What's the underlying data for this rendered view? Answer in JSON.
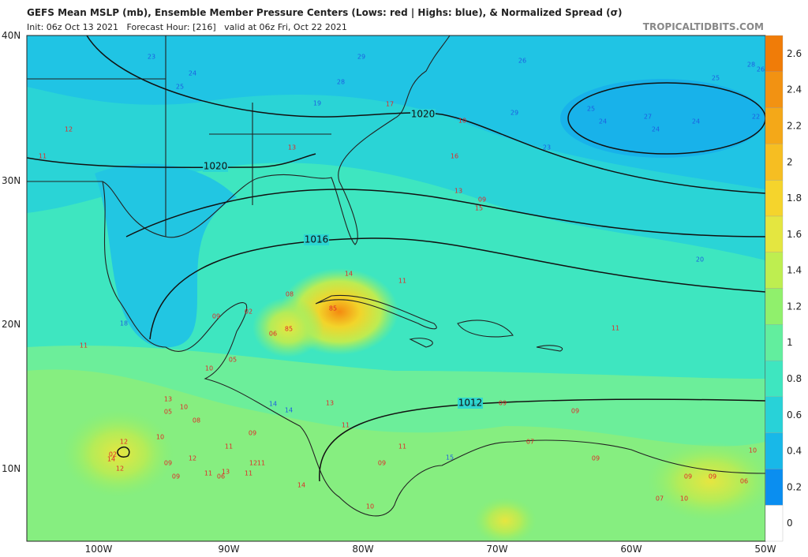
{
  "header": {
    "title": "GEFS Mean MSLP (mb), Ensemble Member Pressure Centers (Lows: red | Highs: blue), & Normalized Spread (σ)",
    "subtitle": "Init: 06z Oct 13 2021   Forecast Hour: [216]   valid at 06z Fri, Oct 22 2021",
    "credit": "TROPICALTIDBITS.COM"
  },
  "map": {
    "lat_labels": [
      "40N",
      "30N",
      "20N",
      "10N"
    ],
    "lon_labels": [
      "100W",
      "90W",
      "80W",
      "70W",
      "60W",
      "50W"
    ],
    "isobar_labels": [
      "1020",
      "1020",
      "1016",
      "1012"
    ],
    "highs": [
      "23",
      "24",
      "25",
      "29",
      "26",
      "25",
      "28",
      "26",
      "28",
      "19",
      "25",
      "24",
      "27",
      "24",
      "24",
      "29",
      "23",
      "22",
      "20",
      "18",
      "14",
      "14",
      "15"
    ],
    "lows": [
      "12",
      "11",
      "17",
      "10",
      "16",
      "13",
      "13",
      "09",
      "15",
      "11",
      "14",
      "85",
      "85",
      "06",
      "08",
      "02",
      "09",
      "11",
      "05",
      "10",
      "11",
      "13",
      "05",
      "10",
      "08",
      "13",
      "11",
      "09",
      "09",
      "02",
      "14",
      "12",
      "12",
      "10",
      "09",
      "12",
      "09",
      "11",
      "06",
      "13",
      "11",
      "09",
      "12",
      "11",
      "11",
      "14",
      "09",
      "11",
      "07",
      "09",
      "10",
      "09",
      "09",
      "06",
      "10",
      "10",
      "07"
    ]
  },
  "colorbar": {
    "labels": [
      "0",
      "0.2",
      "0.4",
      "0.6",
      "0.8",
      "1",
      "1.2",
      "1.4",
      "1.6",
      "1.8",
      "2",
      "2.2",
      "2.4",
      "2.6"
    ]
  }
}
